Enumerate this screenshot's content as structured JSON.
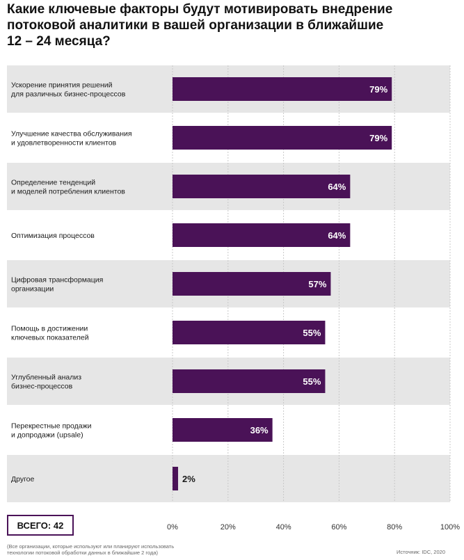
{
  "title_lines": [
    "Какие ключевые факторы будут мотивировать внедрение",
    "потоковой аналитики в вашей организации в ближайшие",
    "12 – 24 месяца?"
  ],
  "total_label": "ВСЕГО: 42",
  "footnote_lines": [
    "(Все организации, которые используют или планируют использовать",
    "технологии потоковой обработки данных в ближайшие 2 года)"
  ],
  "source": "Источник: IDC, 2020",
  "colors": {
    "bar": "#4a1257",
    "band": "#e6e6e6",
    "axis_text": "#333333"
  },
  "chart_data": {
    "type": "bar",
    "orientation": "horizontal",
    "categories": [
      [
        "Ускорение принятия решений",
        "для различных бизнес-процессов"
      ],
      [
        "Улучшение качества обслуживания",
        "и удовлетворенности клиентов"
      ],
      [
        "Определение тенденций",
        "и моделей потребления клиентов"
      ],
      [
        "Оптимизация процессов"
      ],
      [
        "Цифровая трансформация",
        "организации"
      ],
      [
        "Помощь в достижении",
        "ключевых показателей"
      ],
      [
        "Углубленный анализ",
        "бизнес-процессов"
      ],
      [
        "Перекрестные продажи",
        "и допродажи (upsale)"
      ],
      [
        "Другое"
      ]
    ],
    "values": [
      79,
      79,
      64,
      64,
      57,
      55,
      55,
      36,
      2
    ],
    "value_labels": [
      "79%",
      "79%",
      "64%",
      "64%",
      "57%",
      "55%",
      "55%",
      "36%",
      "2%"
    ],
    "xlim": [
      0,
      100
    ],
    "xticks": [
      0,
      20,
      40,
      60,
      80,
      100
    ],
    "xtick_labels": [
      "0%",
      "20%",
      "40%",
      "60%",
      "80%",
      "100%"
    ],
    "grid": true
  }
}
